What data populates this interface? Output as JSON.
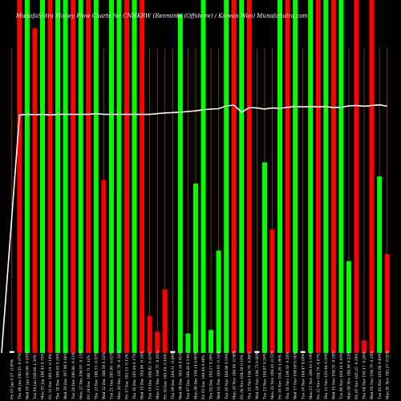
{
  "chart_data": {
    "type": "bar",
    "title": "MunafaSutra Money Flow Charts for CNHKRW (Renminbi (Offshore) / Korean Won) MunafaSutra.com",
    "series": [
      {
        "name": "Money Flow",
        "values": [
          0.5,
          100,
          100,
          92,
          100,
          100,
          100,
          100,
          100,
          100,
          100,
          100,
          49,
          100,
          100,
          100,
          100,
          100,
          10.5,
          6,
          18,
          0.5,
          96,
          5.5,
          48,
          100,
          6.5,
          29,
          100,
          100,
          100,
          100,
          0.5,
          54,
          35,
          100,
          100,
          100,
          0.5,
          100,
          100,
          100,
          100,
          100,
          26,
          100,
          3.5,
          100,
          50,
          28
        ],
        "colors": [
          "#ffffff",
          "#ff0000",
          "#00ff00",
          "#ff0000",
          "#00ff00",
          "#ff0000",
          "#00ff00",
          "#00ff00",
          "#ff0000",
          "#00ff00",
          "#ff0000",
          "#00ff00",
          "#ff0000",
          "#00ff00",
          "#00ff00",
          "#ff0000",
          "#00ff00",
          "#ff0000",
          "#ff0000",
          "#ff0000",
          "#ff0000",
          "#ffffff",
          "#00ff00",
          "#00ff00",
          "#00ff00",
          "#00ff00",
          "#00ff00",
          "#00ff00",
          "#00ff00",
          "#ff0000",
          "#00ff00",
          "#ff0000",
          "#ffffff",
          "#00ff00",
          "#ff0000",
          "#00ff00",
          "#ff0000",
          "#00ff00",
          "#ffffff",
          "#00ff00",
          "#ff0000",
          "#00ff00",
          "#ff0000",
          "#00ff00",
          "#00ff00",
          "#ff0000",
          "#ff0000",
          "#ff0000",
          "#00ff00",
          "#ff0000"
        ]
      },
      {
        "name": "Price",
        "type": "line",
        "color": "#ffffff",
        "values": [
          0,
          67.4,
          67.6,
          67.5,
          67.6,
          67.4,
          67.6,
          67.6,
          67.6,
          67.6,
          67.6,
          67.8,
          67.6,
          67.6,
          67.6,
          67.6,
          67.6,
          67.6,
          67.6,
          67.8,
          68.0,
          68.1,
          68.2,
          68.4,
          68.6,
          68.9,
          69.1,
          69.2,
          70.0,
          70.2,
          68.2,
          69.5,
          69.4,
          69.1,
          69.4,
          69.3,
          69.6,
          69.8,
          69.7,
          69.8,
          69.7,
          69.8,
          69.5,
          69.6,
          70.0,
          70.1,
          69.9,
          70.1,
          70.3,
          69.9
        ]
      }
    ],
    "categories": [
      "Fri 07 Jan 5.57 -0.05%",
      "Thu 06 Jan 190.55 -0.07%",
      "Wed 05 Jan 190.68 -0.03%",
      "Tue 04 Jan 190.68 1.30%",
      "Mon 03 Jan 190.43 0.73%",
      "Fri 31 Dec 189.14 -0.14%",
      "Thu 30 Dec 189.95 0.20%",
      "Wed 29 Dec 187.96 0.06%",
      "Tue 28 Dec 186.66 -0.13%",
      "Mon 27 Dec 186.97 -0.12%",
      "Fri 24 Dec 186.71 0.12%",
      "Thu 23 Dec 186.33 -0.07%",
      "Wed 22 Dec 186.39 0.32%",
      "Tue 21 Dec 185.98 -0.02%",
      "Mon 20 Dec 185.78 -0.35%",
      "Fri 17 Dec 185.13 -0.12%",
      "Thu 16 Dec 185.04 0.17%",
      "Wed 15 Dec 184.96 -0.24%",
      "Tue 14 Dec 184.82 -0.43%",
      "Mon 13 Dec 184.75 -0.05%",
      "Fri 10 Dec 184.50 -0.16%",
      "Thu 09 Dec 184.31 -0.04%",
      "Wed 08 Dec 184.18 0.91%",
      "Tue 07 Dec 184.26 0.54%",
      "Mon 06 Dec 184.14 0.66%",
      "Fri 03 Dec 184.00 0.06%",
      "Thu 02 Dec 184.17 0.28%",
      "Wed 01 Dec 184.95 -0.16%",
      "Tue 30 Nov 184.96 0.59%",
      "Mon 29 Nov 184.94 -0.58%",
      "Fri 26 Nov 184.59 0.19%",
      "Thu 25 Nov 184.79 -0.06%",
      "Wed 24 Nov 184.73 0.00%",
      "Tue 23 Nov 184.87 0.26%",
      "Mon 22 Nov 184.20 -0.53%",
      "Fri 19 Nov 184.29 1.06%",
      "Thu 18 Nov 184.50 -0.50%",
      "Wed 17 Nov 184.68 0.54%",
      "Tue 16 Nov 184.47 0.00%",
      "Mon 15 Nov 184.42 1.19%",
      "Fri 12 Nov 184.79 -0.67%",
      "Thu 11 Nov 183.44 0.39%",
      "Wed 10 Nov 184.33 -0.18%",
      "Tue 09 Nov 184.19 0.10%",
      "Mon 08 Nov 184.96 0.22%",
      "Fri 05 Nov 185.25 -0.29%",
      "Thu 04 Nov 185.17 -0.26%",
      "Wed 03 Nov 184.79 -0.10%",
      "Tue 02 Nov 185.06 0.49%",
      "Mon 01 Nov 185.27 -0.05%"
    ],
    "ylim": [
      0,
      100
    ],
    "grid": true,
    "background": "#000000",
    "up_color": "#00ff00",
    "down_color": "#ff0000"
  }
}
